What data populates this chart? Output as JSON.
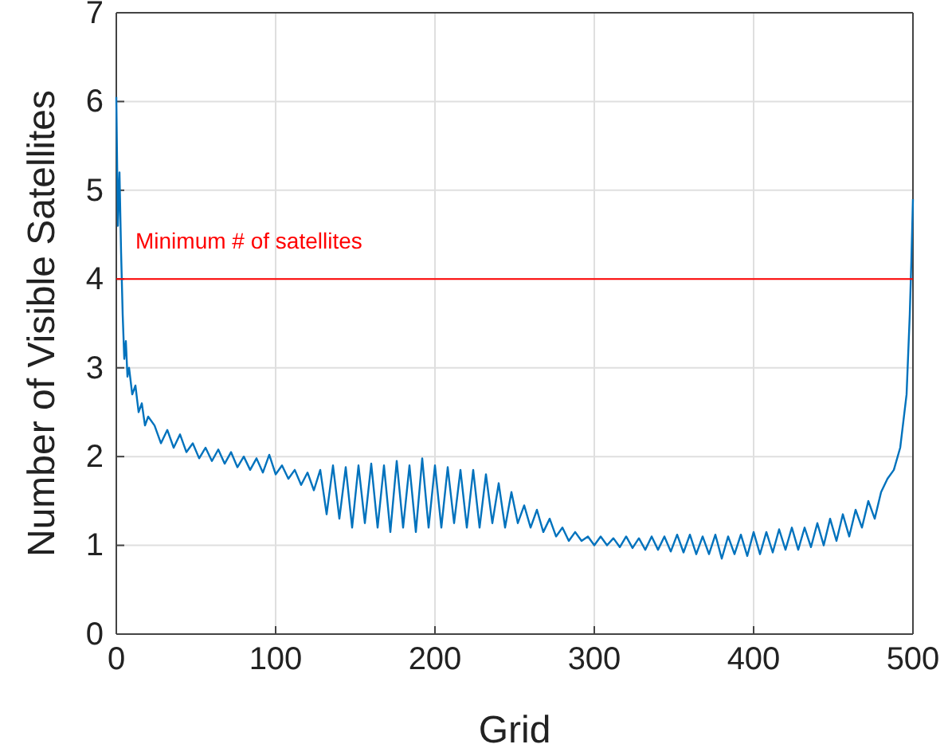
{
  "chart_data": {
    "type": "line",
    "xlabel": "Grid",
    "ylabel": "Number of Visible Satellites",
    "xlim": [
      0,
      500
    ],
    "xticks": [
      0,
      100,
      200,
      300,
      400,
      500
    ],
    "ylim": [
      0,
      7
    ],
    "yticks": [
      0,
      1,
      2,
      3,
      4,
      5,
      6,
      7
    ],
    "grid": true,
    "line_style": "solid",
    "ref_lines": [
      {
        "axis": "y",
        "value": 4,
        "label": "Minimum # of satellites",
        "color": "#ff0000"
      }
    ],
    "series": [
      {
        "color": "#0072bd",
        "x": [
          0,
          1,
          2,
          3,
          4,
          5,
          6,
          7,
          8,
          10,
          12,
          14,
          16,
          18,
          20,
          24,
          28,
          32,
          36,
          40,
          44,
          48,
          52,
          56,
          60,
          64,
          68,
          72,
          76,
          80,
          84,
          88,
          92,
          96,
          100,
          104,
          108,
          112,
          116,
          120,
          124,
          128,
          132,
          136,
          140,
          144,
          148,
          152,
          156,
          160,
          164,
          168,
          172,
          176,
          180,
          184,
          188,
          192,
          196,
          200,
          204,
          208,
          212,
          216,
          220,
          224,
          228,
          232,
          236,
          240,
          244,
          248,
          252,
          256,
          260,
          264,
          268,
          272,
          276,
          280,
          284,
          288,
          292,
          296,
          300,
          304,
          308,
          312,
          316,
          320,
          324,
          328,
          332,
          336,
          340,
          344,
          348,
          352,
          356,
          360,
          364,
          368,
          372,
          376,
          380,
          384,
          388,
          392,
          396,
          400,
          404,
          408,
          412,
          416,
          420,
          424,
          428,
          432,
          436,
          440,
          444,
          448,
          452,
          456,
          460,
          464,
          468,
          472,
          476,
          480,
          484,
          488,
          492,
          494,
          496,
          498,
          499,
          500
        ],
        "values": [
          6.05,
          4.6,
          5.2,
          4.3,
          3.6,
          3.1,
          3.3,
          2.9,
          3.0,
          2.7,
          2.8,
          2.5,
          2.6,
          2.35,
          2.45,
          2.35,
          2.15,
          2.3,
          2.1,
          2.25,
          2.05,
          2.15,
          1.98,
          2.1,
          1.95,
          2.08,
          1.92,
          2.05,
          1.88,
          2.0,
          1.85,
          1.98,
          1.82,
          2.02,
          1.8,
          1.9,
          1.75,
          1.85,
          1.68,
          1.82,
          1.62,
          1.85,
          1.35,
          1.9,
          1.3,
          1.88,
          1.2,
          1.9,
          1.25,
          1.92,
          1.2,
          1.9,
          1.15,
          1.95,
          1.2,
          1.9,
          1.15,
          1.98,
          1.2,
          1.9,
          1.2,
          1.88,
          1.25,
          1.85,
          1.2,
          1.85,
          1.2,
          1.8,
          1.25,
          1.7,
          1.2,
          1.6,
          1.25,
          1.45,
          1.2,
          1.4,
          1.15,
          1.3,
          1.1,
          1.2,
          1.05,
          1.15,
          1.05,
          1.1,
          1.0,
          1.1,
          1.0,
          1.08,
          0.98,
          1.1,
          0.97,
          1.08,
          0.95,
          1.1,
          0.95,
          1.1,
          0.93,
          1.12,
          0.92,
          1.12,
          0.9,
          1.1,
          0.9,
          1.12,
          0.85,
          1.1,
          0.9,
          1.12,
          0.88,
          1.15,
          0.9,
          1.15,
          0.92,
          1.18,
          0.95,
          1.2,
          0.95,
          1.2,
          0.98,
          1.25,
          1.0,
          1.3,
          1.05,
          1.35,
          1.1,
          1.4,
          1.2,
          1.5,
          1.3,
          1.6,
          1.75,
          1.85,
          2.1,
          2.4,
          2.7,
          3.6,
          4.2,
          4.9
        ]
      }
    ]
  }
}
